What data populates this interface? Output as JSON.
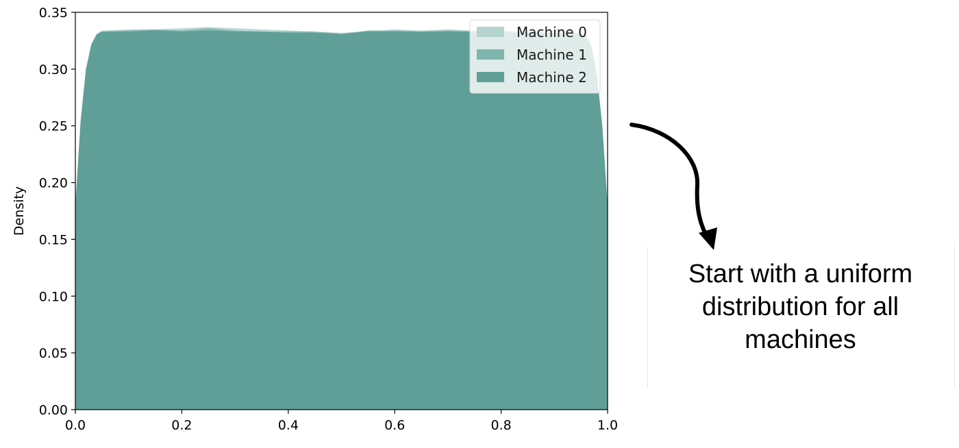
{
  "chart_data": {
    "type": "area",
    "title": "",
    "xlabel": "",
    "ylabel": "Density",
    "xlim": [
      0.0,
      1.0
    ],
    "ylim": [
      0.0,
      0.35
    ],
    "x_ticks": [
      "0.0",
      "0.2",
      "0.4",
      "0.6",
      "0.8",
      "1.0"
    ],
    "y_ticks": [
      "0.00",
      "0.05",
      "0.10",
      "0.15",
      "0.20",
      "0.25",
      "0.30",
      "0.35"
    ],
    "legend_position": "top-right",
    "grid": false,
    "series": [
      {
        "name": "Machine 0",
        "color": "#b5d4cf",
        "x": [
          0.0,
          0.01,
          0.02,
          0.03,
          0.04,
          0.05,
          0.1,
          0.15,
          0.2,
          0.25,
          0.3,
          0.35,
          0.4,
          0.45,
          0.5,
          0.55,
          0.6,
          0.65,
          0.7,
          0.75,
          0.8,
          0.85,
          0.9,
          0.95,
          0.96,
          0.97,
          0.98,
          0.99,
          1.0
        ],
        "y": [
          0.18,
          0.255,
          0.3,
          0.322,
          0.331,
          0.334,
          0.335,
          0.335,
          0.336,
          0.337,
          0.336,
          0.335,
          0.334,
          0.333,
          0.332,
          0.333,
          0.335,
          0.334,
          0.335,
          0.334,
          0.334,
          0.333,
          0.333,
          0.332,
          0.33,
          0.32,
          0.295,
          0.25,
          0.18
        ]
      },
      {
        "name": "Machine 1",
        "color": "#7fb5ad",
        "x": [
          0.0,
          0.01,
          0.02,
          0.03,
          0.04,
          0.05,
          0.1,
          0.15,
          0.2,
          0.25,
          0.3,
          0.35,
          0.4,
          0.45,
          0.5,
          0.55,
          0.6,
          0.65,
          0.7,
          0.75,
          0.8,
          0.85,
          0.9,
          0.95,
          0.96,
          0.97,
          0.98,
          0.99,
          1.0
        ],
        "y": [
          0.18,
          0.255,
          0.3,
          0.322,
          0.331,
          0.333,
          0.334,
          0.335,
          0.334,
          0.336,
          0.334,
          0.333,
          0.333,
          0.333,
          0.331,
          0.334,
          0.334,
          0.333,
          0.334,
          0.333,
          0.333,
          0.333,
          0.332,
          0.331,
          0.329,
          0.32,
          0.295,
          0.25,
          0.18
        ]
      },
      {
        "name": "Machine 2",
        "color": "#5f9f97",
        "x": [
          0.0,
          0.01,
          0.02,
          0.03,
          0.04,
          0.05,
          0.1,
          0.15,
          0.2,
          0.25,
          0.3,
          0.35,
          0.4,
          0.45,
          0.5,
          0.55,
          0.6,
          0.65,
          0.7,
          0.75,
          0.8,
          0.85,
          0.9,
          0.95,
          0.96,
          0.97,
          0.98,
          0.99,
          1.0
        ],
        "y": [
          0.18,
          0.254,
          0.3,
          0.321,
          0.33,
          0.333,
          0.333,
          0.334,
          0.333,
          0.334,
          0.333,
          0.333,
          0.332,
          0.332,
          0.331,
          0.333,
          0.333,
          0.333,
          0.333,
          0.333,
          0.332,
          0.332,
          0.332,
          0.331,
          0.329,
          0.319,
          0.294,
          0.25,
          0.18
        ]
      }
    ]
  },
  "callout": {
    "text": "Start with a uniform\ndistribution for all\nmachines"
  }
}
